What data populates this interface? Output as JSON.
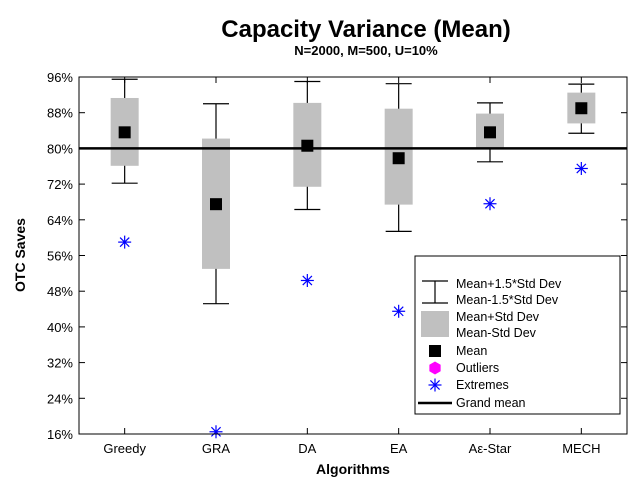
{
  "chart_data": {
    "type": "box",
    "title": "Capacity Variance (Mean)",
    "subtitle": "N=2000, M=500, U=10%",
    "xlabel": "Algorithms",
    "ylabel": "OTC Saves",
    "ylim": [
      0.16,
      0.96
    ],
    "yticks": [
      0.16,
      0.24,
      0.32,
      0.4,
      0.48,
      0.56,
      0.64,
      0.72,
      0.8,
      0.88,
      0.96
    ],
    "ytick_labels": [
      "16%",
      "24%",
      "32%",
      "40%",
      "48%",
      "56%",
      "64%",
      "72%",
      "80%",
      "88%",
      "96%"
    ],
    "categories": [
      "Greedy",
      "GRA",
      "DA",
      "EA",
      "Aε-Star",
      "MECH"
    ],
    "series": [
      {
        "name": "Mean+1.5*Std Dev",
        "values": [
          0.955,
          0.9,
          0.95,
          0.945,
          0.902,
          0.944
        ]
      },
      {
        "name": "Mean-1.5*Std Dev",
        "values": [
          0.722,
          0.452,
          0.663,
          0.614,
          0.77,
          0.834
        ]
      },
      {
        "name": "Mean+Std Dev",
        "values": [
          0.913,
          0.822,
          0.902,
          0.889,
          0.878,
          0.925
        ]
      },
      {
        "name": "Mean-Std Dev",
        "values": [
          0.761,
          0.53,
          0.714,
          0.674,
          0.798,
          0.856
        ]
      },
      {
        "name": "Mean",
        "values": [
          0.836,
          0.675,
          0.806,
          0.778,
          0.836,
          0.89
        ]
      },
      {
        "name": "Extremes",
        "values": [
          0.59,
          0.165,
          0.504,
          0.435,
          0.676,
          0.755
        ]
      }
    ],
    "grand_mean": 0.8,
    "legend": {
      "position": "bottom-right",
      "entries": [
        "Mean+1.5*Std Dev",
        "Mean-1.5*Std Dev",
        "Mean+Std Dev",
        "Mean-Std Dev",
        "Mean",
        "Outliers",
        "Extremes",
        "Grand mean"
      ]
    },
    "colors": {
      "box": "#c0c0c0",
      "mean": "#000000",
      "outliers": "#ff00ff",
      "extremes": "#0000ff",
      "grand_mean": "#000000"
    },
    "grid": false
  }
}
